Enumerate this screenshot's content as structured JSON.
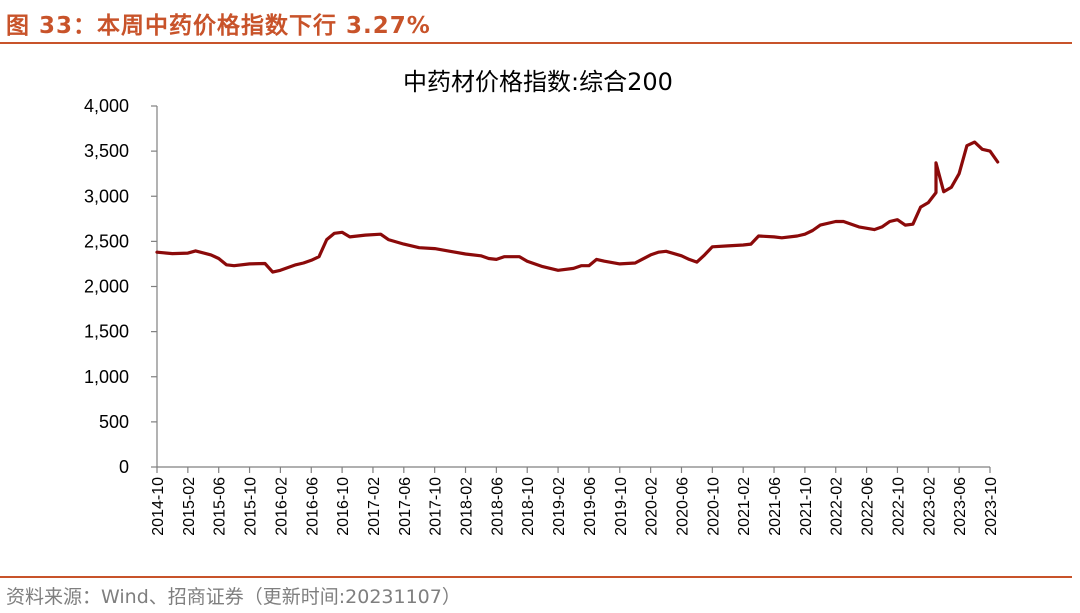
{
  "header": {
    "caption": "图 33：本周中药价格指数下行 3.27%"
  },
  "footer": {
    "source": "资料来源：Wind、招商证券（更新时间:20231107）"
  },
  "colors": {
    "accent": "#c8532a",
    "series": "#8b0a0a",
    "axis": "#808080",
    "source_text": "#7f7f7f"
  },
  "chart_data": {
    "type": "line",
    "title": "中药材价格指数:综合200",
    "xlabel": "",
    "ylabel": "",
    "ylim": [
      0,
      4000
    ],
    "y_ticks": [
      {
        "value": 0,
        "label": "0"
      },
      {
        "value": 500,
        "label": "500"
      },
      {
        "value": 1000,
        "label": "1,000"
      },
      {
        "value": 1500,
        "label": "1,500"
      },
      {
        "value": 2000,
        "label": "2,000"
      },
      {
        "value": 2500,
        "label": "2,500"
      },
      {
        "value": 3000,
        "label": "3,000"
      },
      {
        "value": 3500,
        "label": "3,500"
      },
      {
        "value": 4000,
        "label": "4,000"
      }
    ],
    "x_start": "2014-10",
    "x_end": "2023-10",
    "x_ticks": [
      "2014-10",
      "2015-02",
      "2015-06",
      "2015-10",
      "2016-02",
      "2016-06",
      "2016-10",
      "2017-02",
      "2017-06",
      "2017-10",
      "2018-02",
      "2018-06",
      "2018-10",
      "2019-02",
      "2019-06",
      "2019-10",
      "2020-02",
      "2020-06",
      "2020-10",
      "2021-02",
      "2021-06",
      "2021-10",
      "2022-02",
      "2022-06",
      "2022-10",
      "2023-02",
      "2023-06",
      "2023-10"
    ],
    "legend": "none",
    "grid": false,
    "series": [
      {
        "name": "中药材价格指数:综合200",
        "points": [
          [
            "2014-10",
            2380
          ],
          [
            "2014-12",
            2365
          ],
          [
            "2015-02",
            2370
          ],
          [
            "2015-03",
            2395
          ],
          [
            "2015-05",
            2350
          ],
          [
            "2015-06",
            2310
          ],
          [
            "2015-07",
            2240
          ],
          [
            "2015-08",
            2230
          ],
          [
            "2015-10",
            2250
          ],
          [
            "2015-12",
            2255
          ],
          [
            "2016-01",
            2160
          ],
          [
            "2016-02",
            2180
          ],
          [
            "2016-03",
            2210
          ],
          [
            "2016-04",
            2240
          ],
          [
            "2016-05",
            2260
          ],
          [
            "2016-06",
            2290
          ],
          [
            "2016-07",
            2330
          ],
          [
            "2016-08",
            2520
          ],
          [
            "2016-09",
            2590
          ],
          [
            "2016-10",
            2600
          ],
          [
            "2016-11",
            2550
          ],
          [
            "2017-01",
            2570
          ],
          [
            "2017-03",
            2580
          ],
          [
            "2017-04",
            2520
          ],
          [
            "2017-06",
            2470
          ],
          [
            "2017-08",
            2430
          ],
          [
            "2017-10",
            2420
          ],
          [
            "2017-12",
            2390
          ],
          [
            "2018-02",
            2360
          ],
          [
            "2018-04",
            2340
          ],
          [
            "2018-05",
            2310
          ],
          [
            "2018-06",
            2300
          ],
          [
            "2018-07",
            2330
          ],
          [
            "2018-09",
            2330
          ],
          [
            "2018-10",
            2280
          ],
          [
            "2018-12",
            2220
          ],
          [
            "2019-02",
            2180
          ],
          [
            "2019-04",
            2200
          ],
          [
            "2019-05",
            2230
          ],
          [
            "2019-06",
            2230
          ],
          [
            "2019-07",
            2300
          ],
          [
            "2019-08",
            2280
          ],
          [
            "2019-10",
            2250
          ],
          [
            "2019-12",
            2260
          ],
          [
            "2020-02",
            2350
          ],
          [
            "2020-03",
            2380
          ],
          [
            "2020-04",
            2390
          ],
          [
            "2020-06",
            2340
          ],
          [
            "2020-07",
            2300
          ],
          [
            "2020-08",
            2270
          ],
          [
            "2020-09",
            2350
          ],
          [
            "2020-10",
            2440
          ],
          [
            "2020-12",
            2450
          ],
          [
            "2021-02",
            2460
          ],
          [
            "2021-03",
            2470
          ],
          [
            "2021-04",
            2560
          ],
          [
            "2021-06",
            2550
          ],
          [
            "2021-07",
            2540
          ],
          [
            "2021-09",
            2560
          ],
          [
            "2021-10",
            2580
          ],
          [
            "2021-11",
            2620
          ],
          [
            "2021-12",
            2680
          ],
          [
            "2022-02",
            2720
          ],
          [
            "2022-03",
            2720
          ],
          [
            "2022-05",
            2660
          ],
          [
            "2022-07",
            2630
          ],
          [
            "2022-08",
            2660
          ],
          [
            "2022-09",
            2720
          ],
          [
            "2022-10",
            2740
          ],
          [
            "2022-11",
            2680
          ],
          [
            "2022-12",
            2690
          ],
          [
            "2023-01",
            2880
          ],
          [
            "2023-02",
            2930
          ],
          [
            "2023-03",
            3040
          ],
          [
            "2023-03",
            3370
          ],
          [
            "2023-04",
            3050
          ],
          [
            "2023-05",
            3100
          ],
          [
            "2023-06",
            3250
          ],
          [
            "2023-07",
            3560
          ],
          [
            "2023-08",
            3600
          ],
          [
            "2023-09",
            3520
          ],
          [
            "2023-10",
            3500
          ],
          [
            "2023-11",
            3380
          ]
        ]
      }
    ]
  }
}
